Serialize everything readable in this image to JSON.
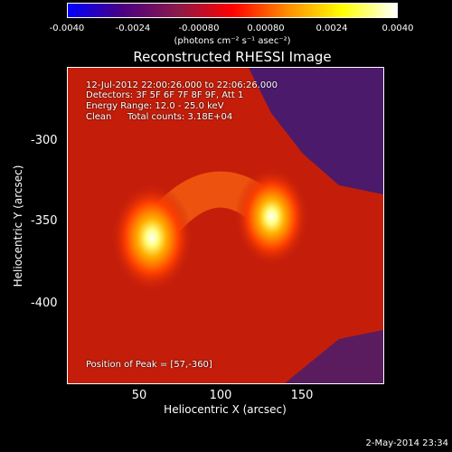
{
  "colorbar": {
    "ticks": [
      "-0.0040",
      "-0.0024",
      "-0.00080",
      "0.00080",
      "0.0024",
      "0.0040"
    ],
    "units": "(photons cm⁻² s⁻¹ asec⁻²)",
    "colors": [
      "#0000ff",
      "#4b0082",
      "#8b1a4a",
      "#ff0000",
      "#ff8c00",
      "#ffff00",
      "#ffffff"
    ]
  },
  "chart_data": {
    "type": "heatmap",
    "title": "Reconstructed RHESSI Image",
    "xlabel": "Heliocentric X (arcsec)",
    "ylabel": "Heliocentric Y (arcsec)",
    "xlim": [
      5,
      200
    ],
    "ylim": [
      -450,
      -255
    ],
    "x_ticks": [
      "50",
      "100",
      "150"
    ],
    "y_ticks": [
      "-300",
      "-350",
      "-400"
    ],
    "sources": [
      {
        "x": 57,
        "y": -360,
        "peak": 0.004
      },
      {
        "x": 131,
        "y": -347,
        "peak": 0.0036
      }
    ],
    "clim": [
      -0.004,
      0.004
    ]
  },
  "annotations": {
    "time_range": "12-Jul-2012 22:00:26.000 to 22:06:26.000",
    "detectors": "Detectors: 3F 5F 6F 7F 8F 9F, Att 1",
    "energy": "Energy Range: 12.0 - 25.0 keV",
    "clean_label": "Clean",
    "total_counts": "Total counts: 3.18E+04",
    "peak_position": "Position of Peak = [57,-360]"
  },
  "datestamp": "2-May-2014 23:34"
}
